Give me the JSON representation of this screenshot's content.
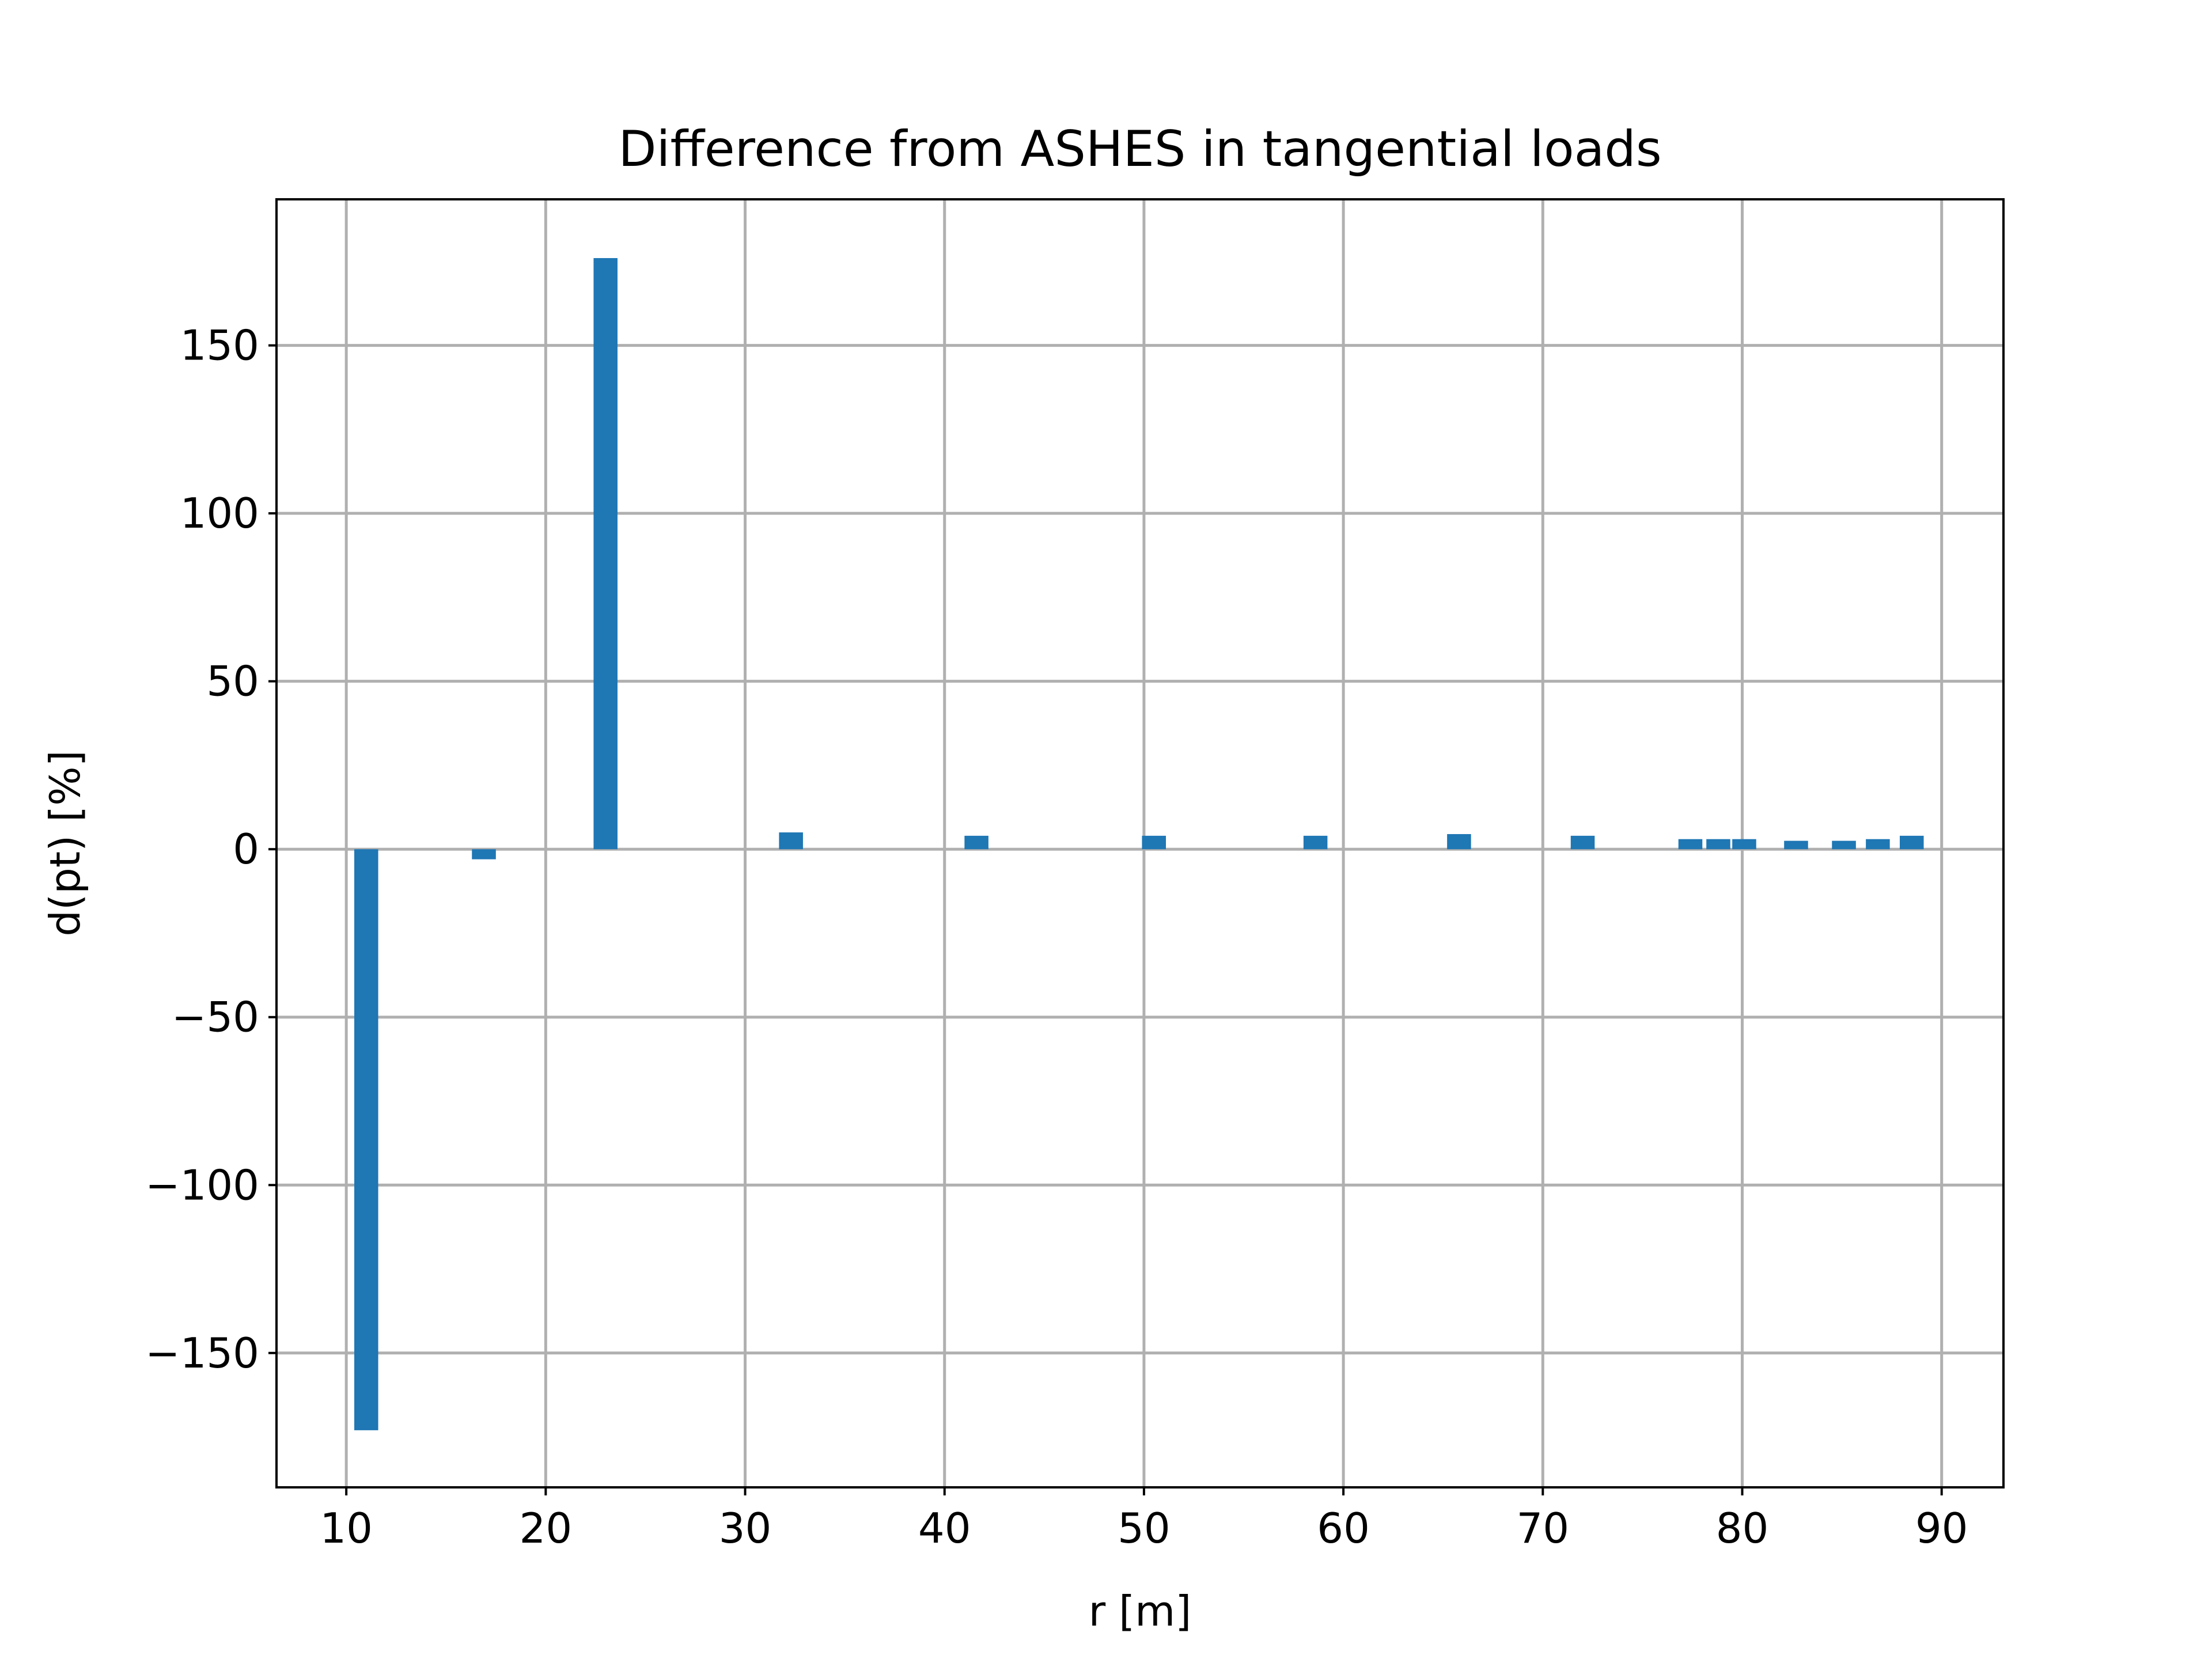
{
  "chart_data": {
    "type": "bar",
    "title": "Difference from ASHES in tangential loads",
    "xlabel": "r [m]",
    "ylabel": "d(pt) [%]",
    "xlim": [
      6.5,
      93.1
    ],
    "ylim": [
      -190,
      193.5
    ],
    "xticks": [
      10,
      20,
      30,
      40,
      50,
      60,
      70,
      80,
      90
    ],
    "xtick_labels": [
      "10",
      "20",
      "30",
      "40",
      "50",
      "60",
      "70",
      "80",
      "90"
    ],
    "yticks": [
      150,
      100,
      50,
      0,
      -50,
      -100,
      -150
    ],
    "ytick_labels": [
      "150",
      "100",
      "50",
      "0",
      "−50",
      "−100",
      "−150"
    ],
    "grid": true,
    "bar_color": "#1f77b4",
    "bar_width": 1.2,
    "x": [
      11.0,
      16.9,
      23.0,
      32.3,
      41.6,
      50.5,
      58.6,
      65.8,
      72.0,
      77.4,
      78.8,
      80.1,
      82.7,
      85.1,
      86.8,
      88.5
    ],
    "values": [
      -173,
      -3,
      176,
      5,
      4,
      4,
      4,
      4.5,
      4,
      3,
      3,
      3,
      2.5,
      2.5,
      3,
      4
    ]
  }
}
